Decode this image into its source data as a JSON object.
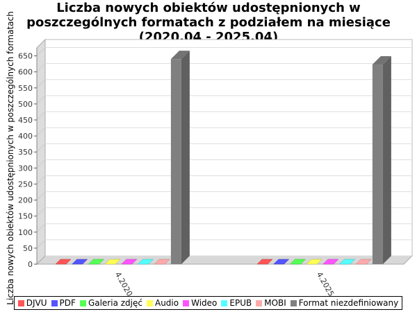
{
  "title_lines": [
    "Liczba nowych obiektów udostępnionych w",
    "poszczególnych formatach z podziałem na miesiące",
    "(2020.04 - 2025.04)"
  ],
  "chart_data": {
    "type": "bar",
    "title": "Liczba nowych obiektów udostępnionych w poszczególnych formatach z podziałem na miesiące (2020.04 - 2025.04)",
    "xlabel": "",
    "ylabel": "Liczba nowych obiektów udostępnionych w poszczególnych formatach",
    "categories": [
      "4.2020",
      "4.2025"
    ],
    "ylim": [
      0,
      675
    ],
    "yticks": [
      0,
      50,
      100,
      150,
      200,
      250,
      300,
      350,
      400,
      450,
      500,
      550,
      600,
      650
    ],
    "grid": true,
    "legend_position": "bottom",
    "series": [
      {
        "name": "DJVU",
        "color": "#ff5555",
        "values": [
          0,
          0
        ]
      },
      {
        "name": "PDF",
        "color": "#5555ff",
        "values": [
          0,
          0
        ]
      },
      {
        "name": "Galeria zdjęć",
        "color": "#55ff55",
        "values": [
          0,
          0
        ]
      },
      {
        "name": "Audio",
        "color": "#ffff55",
        "values": [
          0,
          0
        ]
      },
      {
        "name": "Wideo",
        "color": "#ff55ff",
        "values": [
          0,
          0
        ]
      },
      {
        "name": "EPUB",
        "color": "#55ffff",
        "values": [
          0,
          0
        ]
      },
      {
        "name": "MOBI",
        "color": "#ffaaaa",
        "values": [
          0,
          0
        ]
      },
      {
        "name": "Format niezdefiniowany",
        "color": "#808080",
        "values": [
          640,
          623
        ]
      }
    ]
  }
}
